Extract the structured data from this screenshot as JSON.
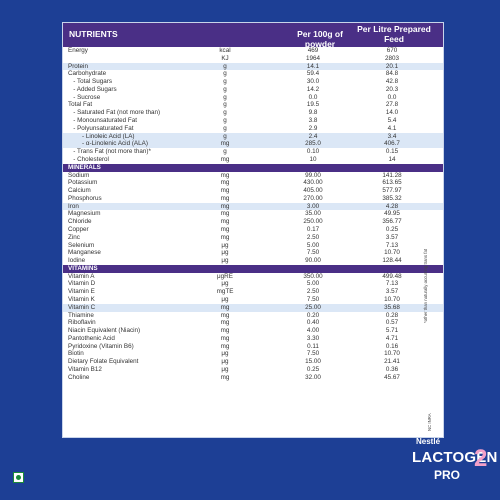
{
  "header": {
    "col_nutrients": "NUTRIENTS",
    "col_powder": "Per 100g of powder",
    "col_feed": "Per Litre Prepared Feed"
  },
  "rows": [
    {
      "name": "Energy",
      "unit": "kcal",
      "v1": "469",
      "v2": "670",
      "type": "row"
    },
    {
      "name": "",
      "unit": "KJ",
      "v1": "1964",
      "v2": "2803",
      "type": "row"
    },
    {
      "name": "Protein",
      "unit": "g",
      "v1": "14.1",
      "v2": "20.1",
      "type": "hl"
    },
    {
      "name": "Carbohydrate",
      "unit": "g",
      "v1": "59.4",
      "v2": "84.8",
      "type": "row"
    },
    {
      "name": "   - Total Sugars",
      "unit": "g",
      "v1": "30.0",
      "v2": "42.8",
      "type": "row"
    },
    {
      "name": "   - Added Sugars",
      "unit": "g",
      "v1": "14.2",
      "v2": "20.3",
      "type": "row"
    },
    {
      "name": "   - Sucrose",
      "unit": "g",
      "v1": "0.0",
      "v2": "0.0",
      "type": "row"
    },
    {
      "name": "Total Fat",
      "unit": "g",
      "v1": "19.5",
      "v2": "27.8",
      "type": "row"
    },
    {
      "name": "   - Saturated Fat (not more than)",
      "unit": "g",
      "v1": "9.8",
      "v2": "14.0",
      "type": "row"
    },
    {
      "name": "   - Monounsaturated Fat",
      "unit": "g",
      "v1": "3.8",
      "v2": "5.4",
      "type": "row"
    },
    {
      "name": "   - Polyunsaturated Fat",
      "unit": "g",
      "v1": "2.9",
      "v2": "4.1",
      "type": "row"
    },
    {
      "name": "        - Linoleic Acid (LA)",
      "unit": "g",
      "v1": "2.4",
      "v2": "3.4",
      "type": "hl"
    },
    {
      "name": "        - α-Linolenic Acid (ALA)",
      "unit": "mg",
      "v1": "285.0",
      "v2": "406.7",
      "type": "hl"
    },
    {
      "name": "   - Trans Fat (not more than)*",
      "unit": "g",
      "v1": "0.10",
      "v2": "0.15",
      "type": "row"
    },
    {
      "name": "   - Cholesterol",
      "unit": "mg",
      "v1": "10",
      "v2": "14",
      "type": "row"
    },
    {
      "name": "MINERALS",
      "unit": "",
      "v1": "",
      "v2": "",
      "type": "sec"
    },
    {
      "name": "Sodium",
      "unit": "mg",
      "v1": "99.00",
      "v2": "141.28",
      "type": "row"
    },
    {
      "name": "Potassium",
      "unit": "mg",
      "v1": "430.00",
      "v2": "613.65",
      "type": "row"
    },
    {
      "name": "Calcium",
      "unit": "mg",
      "v1": "405.00",
      "v2": "577.97",
      "type": "row"
    },
    {
      "name": "Phosphorus",
      "unit": "mg",
      "v1": "270.00",
      "v2": "385.32",
      "type": "row"
    },
    {
      "name": "Iron",
      "unit": "mg",
      "v1": "3.00",
      "v2": "4.28",
      "type": "hl"
    },
    {
      "name": "Magnesium",
      "unit": "mg",
      "v1": "35.00",
      "v2": "49.95",
      "type": "row"
    },
    {
      "name": "Chloride",
      "unit": "mg",
      "v1": "250.00",
      "v2": "356.77",
      "type": "row"
    },
    {
      "name": "Copper",
      "unit": "mg",
      "v1": "0.17",
      "v2": "0.25",
      "type": "row"
    },
    {
      "name": "Zinc",
      "unit": "mg",
      "v1": "2.50",
      "v2": "3.57",
      "type": "row"
    },
    {
      "name": "Selenium",
      "unit": "μg",
      "v1": "5.00",
      "v2": "7.13",
      "type": "row"
    },
    {
      "name": "Manganese",
      "unit": "μg",
      "v1": "7.50",
      "v2": "10.70",
      "type": "row"
    },
    {
      "name": "Iodine",
      "unit": "μg",
      "v1": "90.00",
      "v2": "128.44",
      "type": "row"
    },
    {
      "name": "VITAMINS",
      "unit": "",
      "v1": "",
      "v2": "",
      "type": "sec"
    },
    {
      "name": "Vitamin A",
      "unit": "μgRE",
      "v1": "350.00",
      "v2": "499.48",
      "type": "row"
    },
    {
      "name": "Vitamin D",
      "unit": "μg",
      "v1": "5.00",
      "v2": "7.13",
      "type": "row"
    },
    {
      "name": "Vitamin E",
      "unit": "mgTE",
      "v1": "2.50",
      "v2": "3.57",
      "type": "row"
    },
    {
      "name": "Vitamin K",
      "unit": "μg",
      "v1": "7.50",
      "v2": "10.70",
      "type": "row"
    },
    {
      "name": "Vitamin C",
      "unit": "mg",
      "v1": "25.00",
      "v2": "35.68",
      "type": "hl"
    },
    {
      "name": "Thiamine",
      "unit": "mg",
      "v1": "0.20",
      "v2": "0.28",
      "type": "row"
    },
    {
      "name": "Riboflavin",
      "unit": "mg",
      "v1": "0.40",
      "v2": "0.57",
      "type": "row"
    },
    {
      "name": "Niacin Equivalent (Niacin)",
      "unit": "mg",
      "v1": "4.00",
      "v2": "5.71",
      "type": "row"
    },
    {
      "name": "Pantothenic Acid",
      "unit": "mg",
      "v1": "3.30",
      "v2": "4.71",
      "type": "row"
    },
    {
      "name": "Pyridoxine (Vitamin B6)",
      "unit": "mg",
      "v1": "0.11",
      "v2": "0.16",
      "type": "row"
    },
    {
      "name": "Biotin",
      "unit": "μg",
      "v1": "7.50",
      "v2": "10.70",
      "type": "row"
    },
    {
      "name": "Dietary Folate Equivalent",
      "unit": "μg",
      "v1": "15.00",
      "v2": "21.41",
      "type": "row"
    },
    {
      "name": "Vitamin B12",
      "unit": "μg",
      "v1": "0.25",
      "v2": "0.36",
      "type": "row"
    },
    {
      "name": "Choline",
      "unit": "mg",
      "v1": "32.00",
      "v2": "45.67",
      "type": "row"
    }
  ],
  "footnote": "*other than naturally occurring trans fat",
  "code": "NC INRA",
  "brand": {
    "maker": "Nestlé",
    "name": "LACTOGEN",
    "tier": "PRO",
    "stage": "2"
  },
  "colors": {
    "background": "#1d3f95",
    "header": "#4a2f86",
    "highlight": "#dbe7f6",
    "stage": "#f2a0c8"
  }
}
